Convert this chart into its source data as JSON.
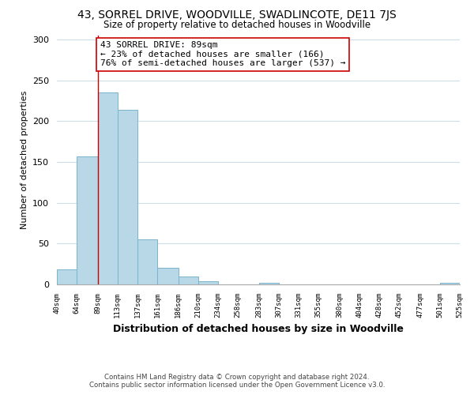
{
  "title": "43, SORREL DRIVE, WOODVILLE, SWADLINCOTE, DE11 7JS",
  "subtitle": "Size of property relative to detached houses in Woodville",
  "xlabel": "Distribution of detached houses by size in Woodville",
  "ylabel": "Number of detached properties",
  "bar_color": "#b8d8e8",
  "bar_edge_color": "#7ab4cc",
  "bin_edges": [
    40,
    64,
    89,
    113,
    137,
    161,
    186,
    210,
    234,
    258,
    283,
    307,
    331,
    355,
    380,
    404,
    428,
    452,
    477,
    501,
    525
  ],
  "bar_heights": [
    18,
    157,
    235,
    214,
    55,
    20,
    10,
    4,
    0,
    0,
    2,
    0,
    0,
    0,
    0,
    0,
    0,
    0,
    0,
    2
  ],
  "tick_labels": [
    "40sqm",
    "64sqm",
    "89sqm",
    "113sqm",
    "137sqm",
    "161sqm",
    "186sqm",
    "210sqm",
    "234sqm",
    "258sqm",
    "283sqm",
    "307sqm",
    "331sqm",
    "355sqm",
    "380sqm",
    "404sqm",
    "428sqm",
    "452sqm",
    "477sqm",
    "501sqm",
    "525sqm"
  ],
  "property_size": 89,
  "marker_line_color": "#cc0000",
  "annotation_line1": "43 SORREL DRIVE: 89sqm",
  "annotation_line2": "← 23% of detached houses are smaller (166)",
  "annotation_line3": "76% of semi-detached houses are larger (537) →",
  "annotation_box_color": "#ffffff",
  "annotation_box_edge_color": "#cc0000",
  "ylim": [
    0,
    305
  ],
  "yticks": [
    0,
    50,
    100,
    150,
    200,
    250,
    300
  ],
  "footer_line1": "Contains HM Land Registry data © Crown copyright and database right 2024.",
  "footer_line2": "Contains public sector information licensed under the Open Government Licence v3.0.",
  "background_color": "#ffffff",
  "grid_color": "#ccdde8"
}
